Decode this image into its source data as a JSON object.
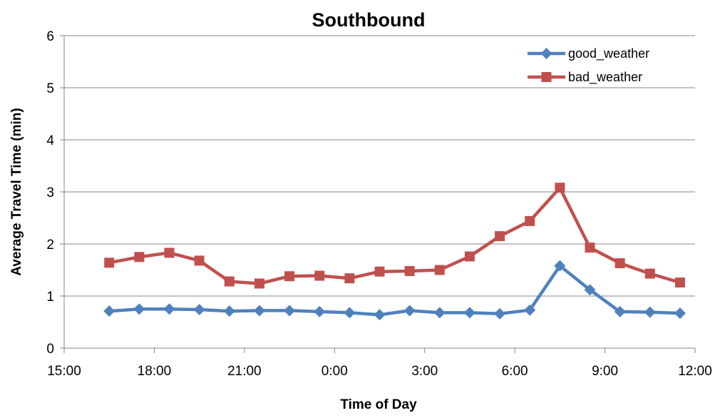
{
  "chart_data": {
    "type": "line",
    "title": "Southbound",
    "xlabel": "Time of Day",
    "ylabel": "Average Travel Time (min)",
    "x_ticks": [
      "15:00",
      "18:00",
      "21:00",
      "0:00",
      "3:00",
      "6:00",
      "9:00",
      "12:00"
    ],
    "y_ticks": [
      "0",
      "1",
      "2",
      "3",
      "4",
      "5",
      "6"
    ],
    "ylim": [
      0,
      6
    ],
    "xlim": [
      "15:00",
      "12:00 (next day)"
    ],
    "grid": "horizontal",
    "legend_position": "top-right",
    "x": [
      "16:30",
      "17:30",
      "18:30",
      "19:30",
      "20:30",
      "21:30",
      "22:30",
      "23:30",
      "0:30",
      "1:30",
      "2:30",
      "3:30",
      "4:30",
      "5:30",
      "6:30",
      "7:30",
      "8:30",
      "9:30",
      "10:30",
      "11:30"
    ],
    "series": [
      {
        "name": "good_weather",
        "color": "#4F81BD",
        "marker": "diamond",
        "values": [
          0.71,
          0.75,
          0.75,
          0.74,
          0.71,
          0.72,
          0.72,
          0.7,
          0.68,
          0.64,
          0.72,
          0.68,
          0.68,
          0.66,
          0.73,
          1.58,
          1.12,
          0.7,
          0.69,
          0.67
        ]
      },
      {
        "name": "bad_weather",
        "color": "#C0504D",
        "marker": "square",
        "values": [
          1.64,
          1.75,
          1.83,
          1.68,
          1.28,
          1.24,
          1.38,
          1.39,
          1.34,
          1.47,
          1.48,
          1.5,
          1.76,
          2.15,
          2.44,
          3.08,
          1.93,
          1.63,
          1.43,
          1.26
        ]
      }
    ]
  }
}
